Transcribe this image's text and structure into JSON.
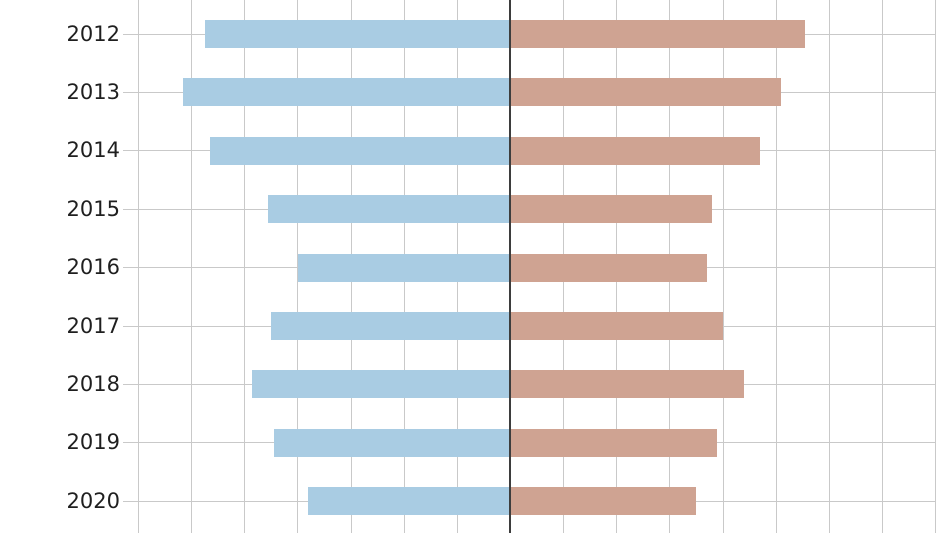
{
  "window": {
    "background": "#ffffff"
  },
  "chart_data": {
    "type": "bar",
    "orientation": "horizontal-diverging",
    "title": "",
    "xlabel": "",
    "ylabel": "",
    "categories": [
      "2012",
      "2013",
      "2014",
      "2015",
      "2016",
      "2017",
      "2018",
      "2019",
      "2020"
    ],
    "series": [
      {
        "name": "left",
        "side": "left",
        "color": "#a9cce3",
        "values": [
          5.75,
          6.15,
          5.65,
          4.55,
          4.0,
          4.5,
          4.85,
          4.45,
          3.8
        ]
      },
      {
        "name": "right",
        "side": "right",
        "color": "#cfa392",
        "values": [
          5.55,
          5.1,
          4.7,
          3.8,
          3.7,
          4.0,
          4.4,
          3.9,
          3.5
        ]
      }
    ],
    "value_unit": "grid divisions (numeric axis tick labels cropped out of frame)",
    "xlim": [
      -7,
      8
    ],
    "grid": true,
    "legend": "none",
    "colors": {
      "zero_axis_line": "#3d3d3d",
      "gridline": "#c9c9c9",
      "tick_label": "#1f1f1f",
      "bar_left": "#a9cce3",
      "bar_right": "#cfa392"
    }
  }
}
